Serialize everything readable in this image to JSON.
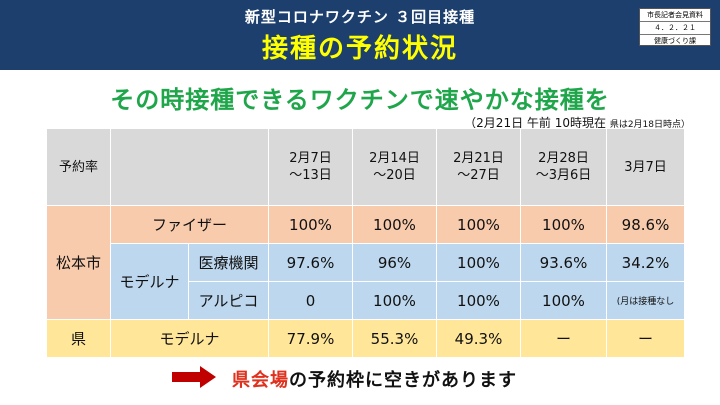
{
  "header": {
    "subtitle": "新型コロナワクチン ３回目接種",
    "title": "接種の予約状況",
    "stamp": [
      "市長記者会見資料",
      "４．２．２１",
      "健康づくり課"
    ]
  },
  "headline": "その時接種できるワクチンで速やかな接種を",
  "as_of": {
    "main": "（2月21日 午前 10時現在",
    "note": "県は2月18日時点）"
  },
  "table": {
    "corner": "予約率",
    "periods": [
      {
        "l1": "2月7日",
        "l2": "～13日"
      },
      {
        "l1": "2月14日",
        "l2": "～20日"
      },
      {
        "l1": "2月21日",
        "l2": "～27日"
      },
      {
        "l1": "2月28日",
        "l2": "～3月6日"
      },
      {
        "l1": "3月7日",
        "l2": ""
      }
    ],
    "matsumoto": {
      "label": "松本市",
      "pfizer": {
        "label": "ファイザー",
        "values": [
          "100%",
          "100%",
          "100%",
          "100%",
          "98.6%"
        ]
      },
      "moderna": {
        "label": "モデルナ",
        "medical": {
          "label": "医療機関",
          "values": [
            "97.6%",
            "96%",
            "100%",
            "93.6%",
            "34.2%"
          ]
        },
        "arupico": {
          "label": "アルピコ",
          "values": [
            "0",
            "100%",
            "100%",
            "100%",
            "(月は接種なし"
          ]
        }
      }
    },
    "prefecture": {
      "label": "県",
      "moderna_label": "モデルナ",
      "values": [
        "77.9%",
        "55.3%",
        "49.3%",
        "ー",
        "ー"
      ]
    }
  },
  "footer": {
    "highlight": "県会場",
    "rest": "の予約枠に空きがあります"
  },
  "colors": {
    "header_bg": "#1c3f6e",
    "title_yellow": "#ffff00",
    "green": "#1fa64a",
    "orange": "#f8cbad",
    "blue": "#bdd7ee",
    "yellow": "#ffe699",
    "gray": "#d9d9d9",
    "arrow_red": "#c00000"
  }
}
